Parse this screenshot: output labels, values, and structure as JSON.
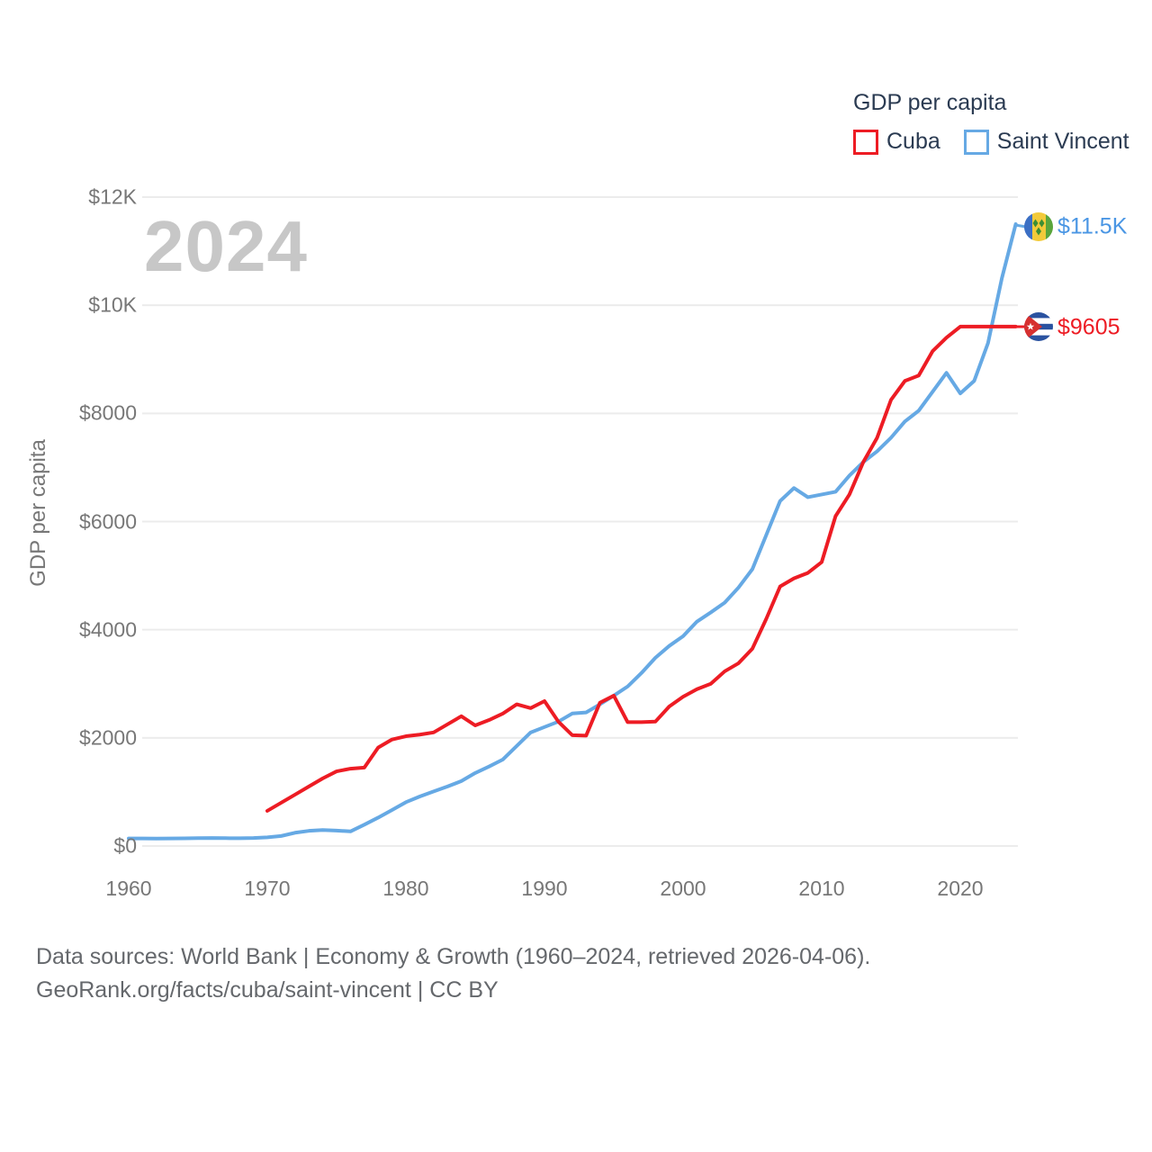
{
  "watermark": "2024",
  "legend": {
    "title": "GDP per capita",
    "series": [
      {
        "label": "Cuba",
        "color": "#ed1c24"
      },
      {
        "label": "Saint Vincent",
        "color": "#66a9e4"
      }
    ]
  },
  "y_axis": {
    "title": "GDP per capita",
    "ticks": [
      "$0",
      "$2000",
      "$4000",
      "$6000",
      "$8000",
      "$10K",
      "$12K"
    ],
    "tick_values": [
      0,
      2000,
      4000,
      6000,
      8000,
      10000,
      12000
    ]
  },
  "x_axis": {
    "ticks": [
      "1960",
      "1970",
      "1980",
      "1990",
      "2000",
      "2010",
      "2020"
    ],
    "tick_values": [
      1960,
      1970,
      1980,
      1990,
      2000,
      2010,
      2020
    ]
  },
  "end_labels": {
    "saint_vincent": {
      "text": "$11.5K",
      "color": "#4a96e4",
      "flag": "saint-vincent-flag"
    },
    "cuba": {
      "text": "$9605",
      "color": "#ed1c24",
      "flag": "cuba-flag"
    }
  },
  "footer": {
    "line1": "Data sources: World Bank | Economy & Growth (1960–2024, retrieved 2026-04-06).",
    "line2": "GeoRank.org/facts/cuba/saint-vincent | CC BY"
  },
  "chart_data": {
    "type": "line",
    "title": "GDP per capita",
    "xlabel": "",
    "ylabel": "GDP per capita",
    "xlim": [
      1959,
      2025
    ],
    "ylim": [
      0,
      12000
    ],
    "grid": "horizontal",
    "legend_position": "top-right",
    "series": [
      {
        "name": "Saint Vincent",
        "color": "#66a9e4",
        "x": [
          1960,
          1961,
          1962,
          1963,
          1964,
          1965,
          1966,
          1967,
          1968,
          1969,
          1970,
          1971,
          1972,
          1973,
          1974,
          1975,
          1976,
          1977,
          1978,
          1979,
          1980,
          1981,
          1982,
          1983,
          1984,
          1985,
          1986,
          1987,
          1988,
          1989,
          1990,
          1991,
          1992,
          1993,
          1994,
          1995,
          1996,
          1997,
          1998,
          1999,
          2000,
          2001,
          2002,
          2003,
          2004,
          2005,
          2006,
          2007,
          2008,
          2009,
          2010,
          2011,
          2012,
          2013,
          2014,
          2015,
          2016,
          2017,
          2018,
          2019,
          2020,
          2021,
          2022,
          2023,
          2024
        ],
        "values": [
          140,
          140,
          138,
          140,
          142,
          145,
          148,
          145,
          143,
          148,
          160,
          185,
          245,
          280,
          295,
          285,
          270,
          395,
          525,
          665,
          810,
          915,
          1010,
          1100,
          1200,
          1350,
          1470,
          1600,
          1850,
          2100,
          2200,
          2300,
          2450,
          2470,
          2620,
          2780,
          2950,
          3200,
          3480,
          3700,
          3880,
          4150,
          4320,
          4500,
          4780,
          5120,
          5750,
          6380,
          6620,
          6450,
          6500,
          6550,
          6850,
          7100,
          7300,
          7550,
          7850,
          8050,
          8400,
          8750,
          8370,
          8600,
          9300,
          10500,
          11500
        ],
        "end_value_label": "$11.5K"
      },
      {
        "name": "Cuba",
        "color": "#ed1c24",
        "x": [
          1970,
          1971,
          1972,
          1973,
          1974,
          1975,
          1976,
          1977,
          1978,
          1979,
          1980,
          1981,
          1982,
          1983,
          1984,
          1985,
          1986,
          1987,
          1988,
          1989,
          1990,
          1991,
          1992,
          1993,
          1994,
          1995,
          1996,
          1997,
          1998,
          1999,
          2000,
          2001,
          2002,
          2003,
          2004,
          2005,
          2006,
          2007,
          2008,
          2009,
          2010,
          2011,
          2012,
          2013,
          2014,
          2015,
          2016,
          2017,
          2018,
          2019,
          2020,
          2021,
          2022,
          2023,
          2024
        ],
        "values": [
          650,
          800,
          950,
          1100,
          1250,
          1380,
          1430,
          1450,
          1820,
          1970,
          2030,
          2060,
          2100,
          2250,
          2400,
          2230,
          2330,
          2450,
          2620,
          2550,
          2680,
          2300,
          2050,
          2040,
          2650,
          2780,
          2290,
          2290,
          2300,
          2580,
          2760,
          2900,
          3000,
          3230,
          3380,
          3650,
          4200,
          4800,
          4950,
          5050,
          5250,
          6100,
          6500,
          7100,
          7550,
          8250,
          8600,
          8700,
          9150,
          9400,
          9605,
          9605,
          9605,
          9605,
          9605
        ],
        "end_value_label": "$9605"
      }
    ]
  }
}
